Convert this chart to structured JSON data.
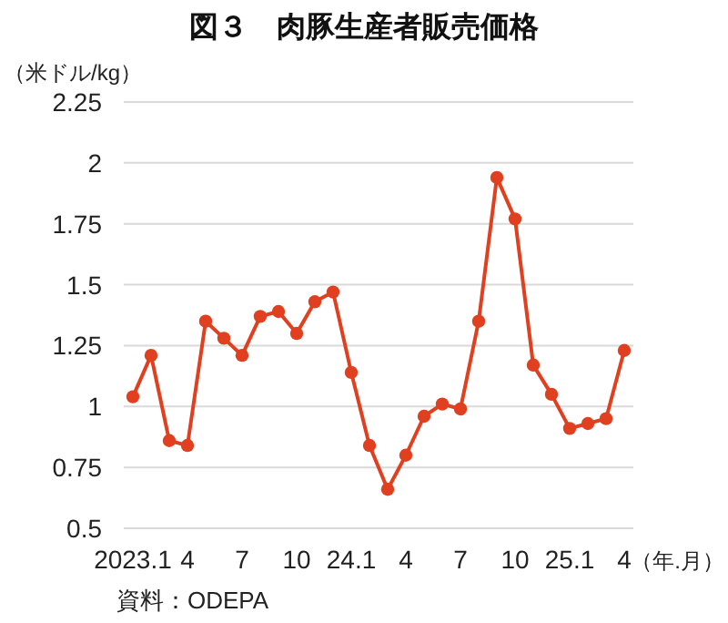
{
  "chart_data": {
    "type": "line",
    "title": "図３　肉豚生産者販売価格",
    "ylabel": "（米ドル/kg）",
    "xlabel": "（年.月）",
    "annotations": [
      "資料：ODEPA"
    ],
    "categories": [
      "2023.1",
      null,
      null,
      "4",
      null,
      null,
      "7",
      null,
      null,
      "10",
      null,
      null,
      "24.1",
      null,
      null,
      "4",
      null,
      null,
      "7",
      null,
      null,
      "10",
      null,
      null,
      "25.1",
      null,
      null,
      "4"
    ],
    "series": [
      {
        "color": "#e0401f",
        "values": [
          1.04,
          1.21,
          0.86,
          0.84,
          1.35,
          1.28,
          1.21,
          1.37,
          1.39,
          1.3,
          1.43,
          1.47,
          1.14,
          0.84,
          0.66,
          0.8,
          0.96,
          1.01,
          0.99,
          1.35,
          1.94,
          1.77,
          1.17,
          1.05,
          0.91,
          0.93,
          0.95,
          1.23
        ]
      }
    ],
    "ylim": [
      0.5,
      2.25
    ],
    "yticks": [
      0.5,
      0.75,
      1,
      1.25,
      1.5,
      1.75,
      2,
      2.25
    ],
    "grid": "y",
    "marker": "circle",
    "line_style": "solid"
  }
}
